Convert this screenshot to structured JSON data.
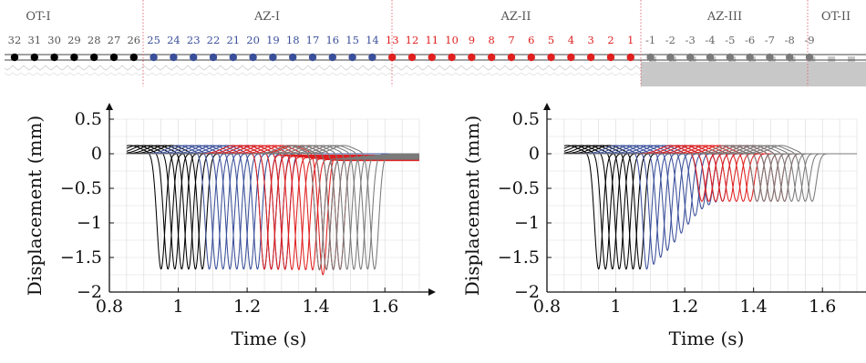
{
  "zones": [
    {
      "name": "OT-I",
      "color": "#555555",
      "sensors": [
        "32",
        "31",
        "30",
        "29",
        "28",
        "27",
        "26"
      ]
    },
    {
      "name": "AZ-I",
      "color": "#3a4f9a",
      "sensors": [
        "25",
        "24",
        "23",
        "22",
        "21",
        "20",
        "19",
        "18",
        "17",
        "16",
        "15",
        "14"
      ]
    },
    {
      "name": "AZ-II",
      "color": "#e02020",
      "sensors": [
        "13",
        "12",
        "11",
        "10",
        "9",
        "8",
        "7",
        "6",
        "5",
        "4",
        "3",
        "2",
        "1"
      ]
    },
    {
      "name": "AZ-III",
      "color": "#666666",
      "sensors": [
        "-1",
        "-2",
        "-3",
        "-4",
        "-5",
        "-6",
        "-7",
        "-8",
        "-9"
      ]
    },
    {
      "name": "OT-II",
      "color": "#555555",
      "sensors": []
    }
  ],
  "colors": {
    "ot_i": "#000000",
    "az_i": "#3a4f9a",
    "az_ii": "#e02020",
    "az_iii": "#7a7a7a",
    "zone_divider": "#e05060",
    "grid": "#d9d9d9",
    "soil_fill": "#c8c8c8"
  },
  "chart_data": [
    {
      "type": "line",
      "title": "",
      "xlabel": "Time (s)",
      "ylabel": "Displacement (mm)",
      "xlim": [
        0.8,
        1.7
      ],
      "ylim": [
        -2,
        0.5
      ],
      "xticks": [
        0.8,
        1,
        1.2,
        1.4,
        1.6
      ],
      "xtick_labels": [
        "0.8",
        "1",
        "1.2",
        "1.4",
        "1.6"
      ],
      "yticks": [
        -2,
        -1.5,
        -1,
        -0.5,
        0,
        0.5
      ],
      "ytick_labels": [
        "−2",
        "−1.5",
        "−1",
        "−0.5",
        "0",
        "0.5"
      ],
      "grid": true,
      "series": [
        {
          "group": "OT-I",
          "color": "#000000",
          "trough_times": [
            0.95,
            0.97,
            0.99,
            1.01,
            1.03,
            1.05,
            1.07
          ],
          "min_values": [
            -1.67,
            -1.67,
            -1.67,
            -1.67,
            -1.67,
            -1.67,
            -1.67
          ],
          "final_values": [
            0,
            0,
            0,
            0,
            0,
            0,
            0
          ]
        },
        {
          "group": "AZ-I",
          "color": "#3a4f9a",
          "trough_times": [
            1.09,
            1.11,
            1.13,
            1.15,
            1.17,
            1.19,
            1.21,
            1.23,
            1.25,
            1.27,
            1.29,
            1.31
          ],
          "min_values": [
            -1.67,
            -1.67,
            -1.67,
            -1.67,
            -1.67,
            -1.67,
            -1.67,
            -1.67,
            -1.67,
            -1.67,
            -1.67,
            -1.67
          ],
          "final_values": [
            0,
            0,
            0,
            0,
            0,
            0,
            0,
            0,
            0,
            0,
            0,
            0
          ]
        },
        {
          "group": "AZ-II",
          "color": "#e02020",
          "trough_times": [
            1.25,
            1.27,
            1.29,
            1.31,
            1.33,
            1.35,
            1.37,
            1.39,
            1.41,
            1.43,
            1.45,
            1.47,
            1.42
          ],
          "min_values": [
            -1.67,
            -1.67,
            -1.67,
            -1.67,
            -1.67,
            -1.67,
            -1.67,
            -1.67,
            -1.67,
            -1.67,
            -1.67,
            -1.67,
            -1.75
          ],
          "final_values": [
            -0.02,
            -0.03,
            -0.04,
            -0.05,
            -0.06,
            -0.07,
            -0.08,
            -0.09,
            -0.1,
            -0.08,
            -0.06,
            -0.04,
            -0.02
          ]
        },
        {
          "group": "AZ-III",
          "color": "#7a7a7a",
          "trough_times": [
            1.41,
            1.43,
            1.45,
            1.47,
            1.49,
            1.51,
            1.53,
            1.55,
            1.57
          ],
          "min_values": [
            -1.67,
            -1.67,
            -1.67,
            -1.67,
            -1.67,
            -1.67,
            -1.67,
            -1.67,
            -1.67
          ],
          "final_values": [
            -0.08,
            -0.07,
            -0.06,
            -0.05,
            -0.04,
            -0.03,
            -0.02,
            -0.01,
            0
          ]
        }
      ]
    },
    {
      "type": "line",
      "title": "",
      "xlabel": "Time (s)",
      "ylabel": "Displacement (mm)",
      "xlim": [
        0.8,
        1.7
      ],
      "ylim": [
        -2,
        0.5
      ],
      "xticks": [
        0.8,
        1,
        1.2,
        1.4,
        1.6
      ],
      "xtick_labels": [
        "0.8",
        "1",
        "1.2",
        "1.4",
        "1.6"
      ],
      "yticks": [
        -2,
        -1.5,
        -1,
        -0.5,
        0,
        0.5
      ],
      "ytick_labels": [
        "−2",
        "−1.5",
        "−1",
        "−0.5",
        "0",
        "0.5"
      ],
      "grid": true,
      "series": [
        {
          "group": "OT-I",
          "color": "#000000",
          "trough_times": [
            0.95,
            0.97,
            0.99,
            1.01,
            1.03,
            1.05,
            1.07
          ],
          "min_values": [
            -1.67,
            -1.67,
            -1.67,
            -1.67,
            -1.67,
            -1.67,
            -1.67
          ],
          "final_values": [
            0,
            0,
            0,
            0,
            0,
            0,
            0
          ]
        },
        {
          "group": "AZ-I",
          "color": "#3a4f9a",
          "trough_times": [
            1.09,
            1.11,
            1.13,
            1.15,
            1.17,
            1.19,
            1.21,
            1.23,
            1.25,
            1.27,
            1.29,
            1.31
          ],
          "min_values": [
            -1.67,
            -1.6,
            -1.5,
            -1.4,
            -1.28,
            -1.15,
            -1.02,
            -0.9,
            -0.8,
            -0.74,
            -0.7,
            -0.69
          ],
          "final_values": [
            0,
            0,
            0,
            0,
            0,
            0,
            0,
            0,
            0,
            0,
            0,
            0
          ]
        },
        {
          "group": "AZ-II",
          "color": "#e02020",
          "trough_times": [
            1.25,
            1.27,
            1.29,
            1.31,
            1.33,
            1.35,
            1.37,
            1.39,
            1.41,
            1.43,
            1.45,
            1.47,
            1.49
          ],
          "min_values": [
            -0.69,
            -0.69,
            -0.69,
            -0.69,
            -0.69,
            -0.69,
            -0.69,
            -0.69,
            -0.69,
            -0.69,
            -0.69,
            -0.69,
            -0.69
          ],
          "final_values": [
            0,
            0,
            0,
            0,
            0,
            0,
            0,
            0,
            0,
            0,
            0,
            0,
            0
          ]
        },
        {
          "group": "AZ-III",
          "color": "#7a7a7a",
          "trough_times": [
            1.41,
            1.43,
            1.45,
            1.47,
            1.49,
            1.51,
            1.53,
            1.55,
            1.57
          ],
          "min_values": [
            -0.69,
            -0.69,
            -0.69,
            -0.69,
            -0.69,
            -0.69,
            -0.69,
            -0.69,
            -0.69
          ],
          "final_values": [
            0,
            0,
            0,
            0,
            0,
            0,
            0,
            0,
            0
          ]
        }
      ]
    }
  ]
}
